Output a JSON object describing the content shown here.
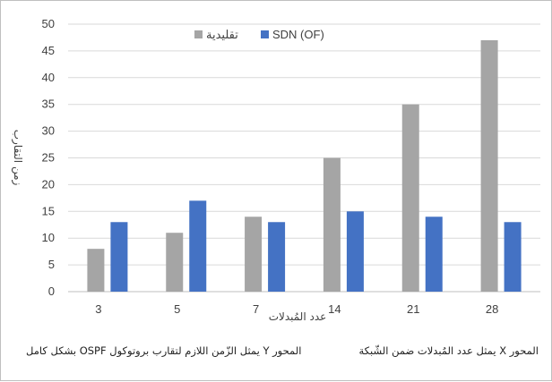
{
  "chart_data": {
    "type": "bar",
    "categories": [
      "3",
      "5",
      "7",
      "14",
      "21",
      "28"
    ],
    "series": [
      {
        "name": "تقليدية",
        "color": "#a5a5a5",
        "values": [
          8,
          11,
          14,
          25,
          35,
          47
        ]
      },
      {
        "name": "SDN (OF)",
        "color": "#4472c4",
        "values": [
          13,
          17,
          13,
          15,
          14,
          13
        ]
      }
    ],
    "ylim": [
      0,
      50
    ],
    "yticks": [
      0,
      5,
      10,
      15,
      20,
      25,
      30,
      35,
      40,
      45,
      50
    ],
    "ylabel": "زمن التقارب",
    "xlabel": "عدد المُبدلات",
    "grid": true,
    "legend_position": "top-center"
  },
  "captions": {
    "left": "المحور Y يمثل الزّمن اللازم لتقارب بروتوكول OSPF بشكل كامل",
    "right": "المحور X يمثل عدد المُبدلات ضمن الشّبكة"
  }
}
